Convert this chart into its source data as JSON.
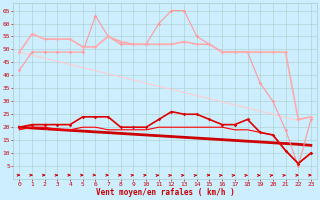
{
  "x": [
    0,
    1,
    2,
    3,
    4,
    5,
    6,
    7,
    8,
    9,
    10,
    11,
    12,
    13,
    14,
    15,
    16,
    17,
    18,
    19,
    20,
    21,
    22,
    23
  ],
  "series": [
    {
      "name": "rafales_max",
      "values": [
        42,
        49,
        49,
        49,
        49,
        49,
        63,
        55,
        52,
        52,
        52,
        60,
        65,
        65,
        55,
        52,
        49,
        49,
        49,
        37,
        30,
        19,
        5,
        23
      ],
      "color": "#ff9999",
      "linewidth": 0.8,
      "marker": "D",
      "markersize": 1.8,
      "linestyle": "-",
      "zorder": 3
    },
    {
      "name": "rafales_moy",
      "values": [
        49,
        56,
        54,
        54,
        54,
        51,
        51,
        55,
        53,
        52,
        52,
        52,
        52,
        53,
        52,
        52,
        49,
        49,
        49,
        49,
        49,
        49,
        23,
        24
      ],
      "color": "#ffaaaa",
      "linewidth": 1.2,
      "marker": "D",
      "markersize": 1.8,
      "linestyle": "-",
      "zorder": 3
    },
    {
      "name": "trend_rafales",
      "values": [
        49,
        47.8,
        46.6,
        45.4,
        44.2,
        43.0,
        41.8,
        40.6,
        39.4,
        38.2,
        37.0,
        35.8,
        34.6,
        33.4,
        32.2,
        31.0,
        29.8,
        28.6,
        27.4,
        26.2,
        25.0,
        23.8,
        22.6,
        24
      ],
      "color": "#ffcccc",
      "linewidth": 0.8,
      "marker": null,
      "markersize": 0,
      "linestyle": "-",
      "zorder": 2
    },
    {
      "name": "vent_moyen",
      "values": [
        20,
        21,
        21,
        21,
        21,
        24,
        24,
        24,
        20,
        20,
        20,
        23,
        26,
        25,
        25,
        23,
        21,
        21,
        23,
        18,
        17,
        11,
        6,
        10
      ],
      "color": "#dd0000",
      "linewidth": 1.2,
      "marker": "D",
      "markersize": 1.8,
      "linestyle": "-",
      "zorder": 4
    },
    {
      "name": "vent_min",
      "values": [
        19,
        20,
        20,
        19,
        19,
        20,
        20,
        19,
        19,
        19,
        19,
        20,
        20,
        20,
        20,
        20,
        20,
        19,
        19,
        18,
        17,
        11,
        6,
        10
      ],
      "color": "#ff0000",
      "linewidth": 0.8,
      "marker": null,
      "markersize": 0,
      "linestyle": "-",
      "zorder": 3
    },
    {
      "name": "trend_vent",
      "values": [
        20,
        19.7,
        19.4,
        19.1,
        18.8,
        18.5,
        18.2,
        17.9,
        17.6,
        17.3,
        17.0,
        16.7,
        16.4,
        16.1,
        15.8,
        15.5,
        15.2,
        14.9,
        14.6,
        14.3,
        14.0,
        13.7,
        13.4,
        13.0
      ],
      "color": "#cc0000",
      "linewidth": 2.0,
      "marker": null,
      "markersize": 0,
      "linestyle": "-",
      "zorder": 2
    }
  ],
  "wind_arrows": {
    "y": 1.5,
    "color": "#cc0000",
    "angles_deg": [
      0,
      0,
      0,
      0,
      0,
      0,
      -15,
      0,
      0,
      15,
      15,
      30,
      30,
      30,
      30,
      0,
      30,
      30,
      30,
      30,
      30,
      30,
      15,
      0
    ]
  },
  "xlabel": "Vent moyen/en rafales ( km/h )",
  "ylim": [
    0,
    68
  ],
  "yticks": [
    5,
    10,
    15,
    20,
    25,
    30,
    35,
    40,
    45,
    50,
    55,
    60,
    65
  ],
  "xticks": [
    0,
    1,
    2,
    3,
    4,
    5,
    6,
    7,
    8,
    9,
    10,
    11,
    12,
    13,
    14,
    15,
    16,
    17,
    18,
    19,
    20,
    21,
    22,
    23
  ],
  "bg_color": "#cceeff",
  "grid_color": "#aacccc",
  "tick_color": "#cc0000",
  "label_color": "#cc0000"
}
